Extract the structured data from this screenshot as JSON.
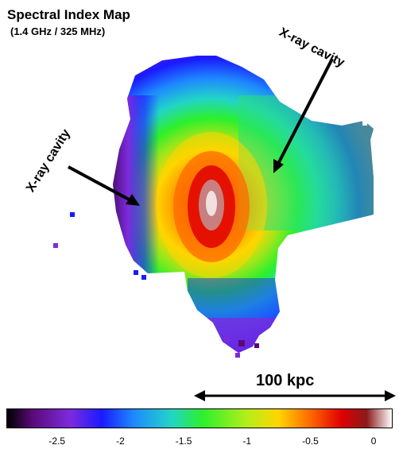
{
  "title": "Spectral Index Map",
  "subtitle": "(1.4 GHz / 325 MHz)",
  "annotations": {
    "cavity_right": "X-ray cavity",
    "cavity_left": "X-ray cavity"
  },
  "scale_bar": {
    "label": "100 kpc"
  },
  "colorbar": {
    "min": -2.9,
    "max": 0.15,
    "ticks": [
      {
        "value": -2.5,
        "label": "-2.5"
      },
      {
        "value": -2,
        "label": "-2"
      },
      {
        "value": -1.5,
        "label": "-1.5"
      },
      {
        "value": -1,
        "label": "-1"
      },
      {
        "value": -0.5,
        "label": "-0.5"
      },
      {
        "value": 0,
        "label": "0"
      }
    ],
    "stops": [
      {
        "value": -2.9,
        "color": "#000000"
      },
      {
        "value": -2.7,
        "color": "#5a0a78"
      },
      {
        "value": -2.4,
        "color": "#7d2bdc"
      },
      {
        "value": -2.15,
        "color": "#1a1aff"
      },
      {
        "value": -1.9,
        "color": "#1e88ff"
      },
      {
        "value": -1.6,
        "color": "#22d4c8"
      },
      {
        "value": -1.35,
        "color": "#2cf02c"
      },
      {
        "value": -1.0,
        "color": "#b4ee1a"
      },
      {
        "value": -0.75,
        "color": "#ffd500"
      },
      {
        "value": -0.5,
        "color": "#ff6a00"
      },
      {
        "value": -0.25,
        "color": "#e00000"
      },
      {
        "value": -0.05,
        "color": "#8a1a1a"
      },
      {
        "value": 0.15,
        "color": "#ffffff"
      }
    ]
  }
}
